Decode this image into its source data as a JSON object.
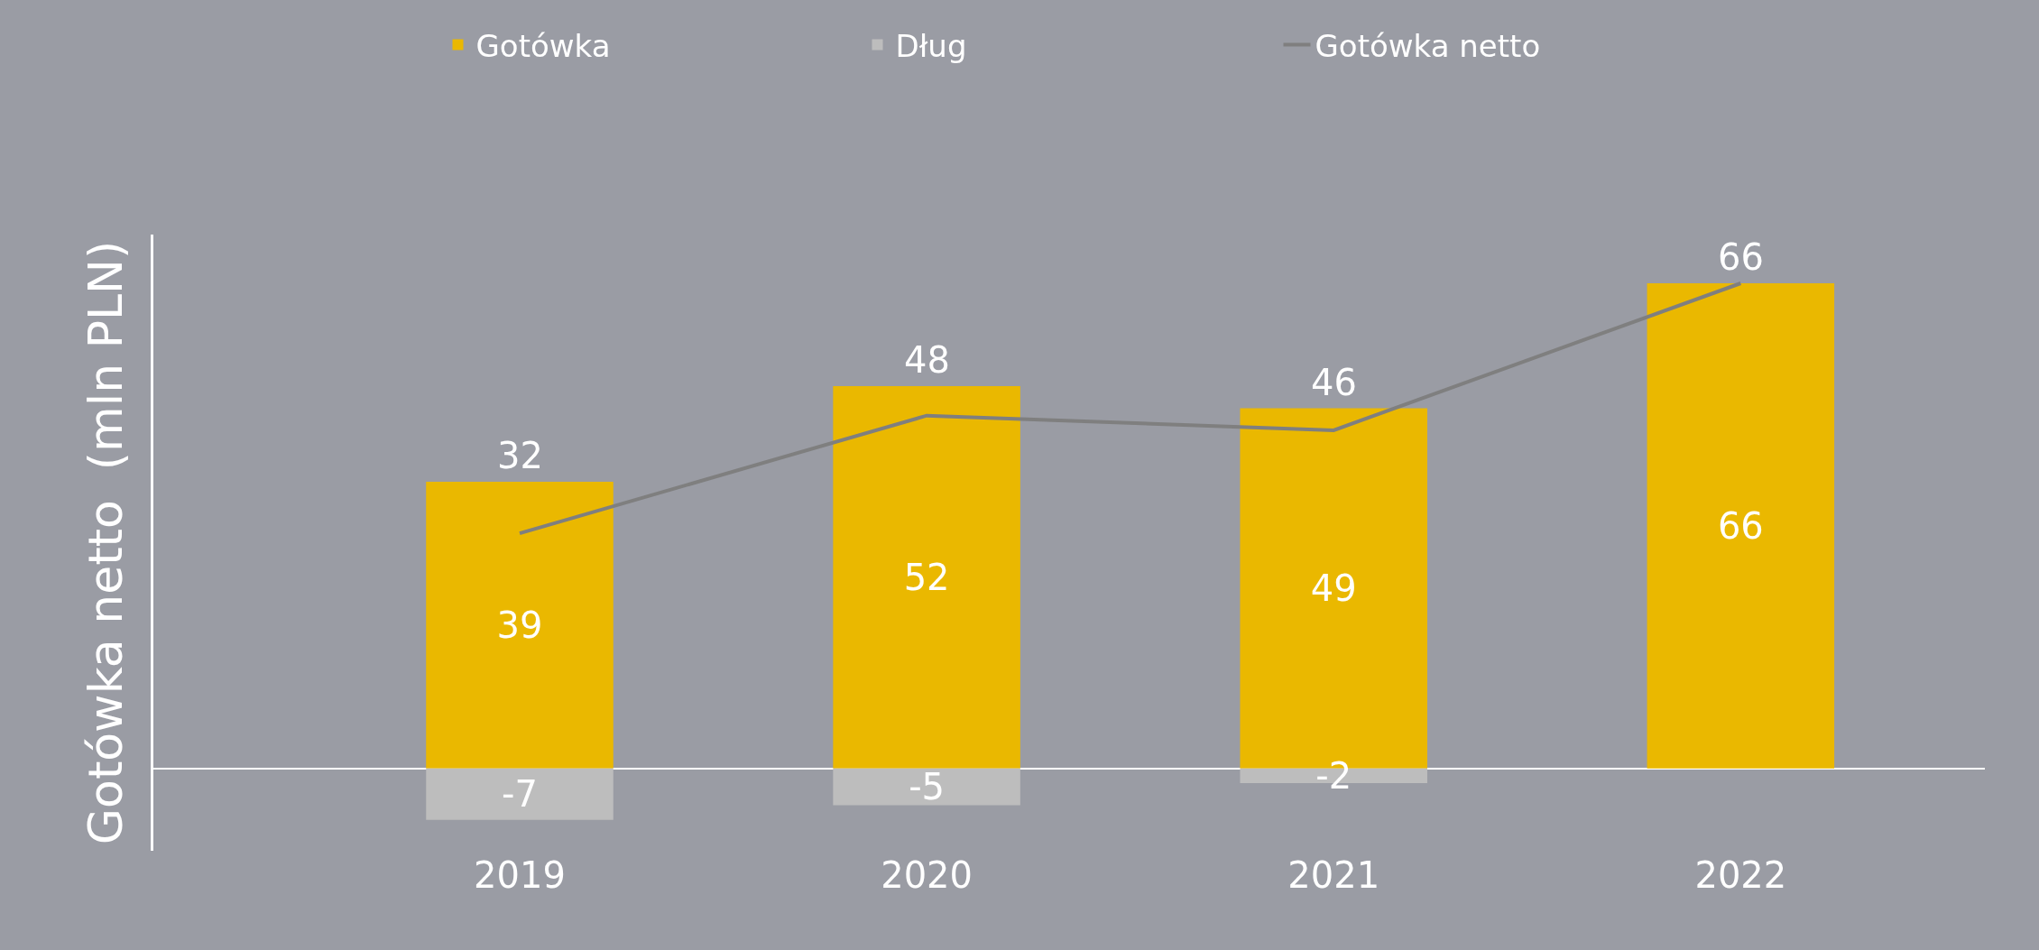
{
  "chart_data": {
    "type": "bar",
    "ylabel": "Gotówka netto  (mln PLN)",
    "categories": [
      "2019",
      "2020",
      "2021",
      "2022"
    ],
    "series": [
      {
        "name": "Gotówka",
        "color": "#eab800",
        "values": [
          39,
          52,
          49,
          66
        ]
      },
      {
        "name": "Dług",
        "color": "#bdbdbd",
        "values": [
          -7,
          -5,
          -2,
          null
        ]
      },
      {
        "name": "Gotówka netto",
        "type": "line",
        "color": "#7f7f7f",
        "values": [
          32,
          48,
          46,
          66
        ]
      }
    ],
    "stacked": true,
    "data_labels": true,
    "legend": "top",
    "grid": false,
    "tick_labels": "x",
    "marker": "none",
    "line_style": "solid"
  }
}
